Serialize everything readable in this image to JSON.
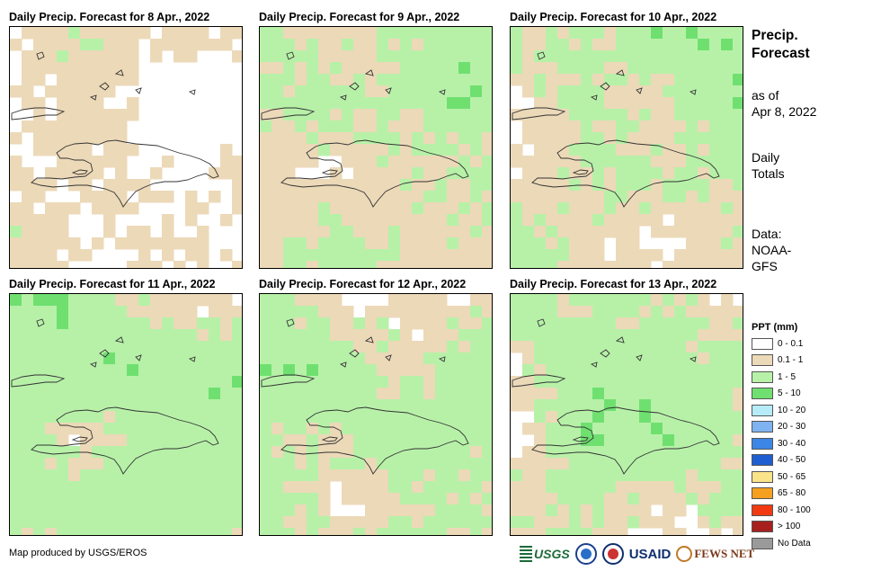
{
  "panels": [
    {
      "title": "Daily Precip. Forecast for 8 Apr., 2022"
    },
    {
      "title": "Daily Precip. Forecast for 9 Apr., 2022"
    },
    {
      "title": "Daily Precip. Forecast for 10 Apr., 2022"
    },
    {
      "title": "Daily Precip. Forecast for 11 Apr., 2022"
    },
    {
      "title": "Daily Precip. Forecast for 12 Apr., 2022"
    },
    {
      "title": "Daily Precip. Forecast for 13 Apr., 2022"
    }
  ],
  "side": {
    "title_line1": "Precip.",
    "title_line2": "Forecast",
    "asof_line1": "as of",
    "asof_line2": "Apr 8, 2022",
    "daily_line1": "Daily",
    "daily_line2": "Totals",
    "data_line1": "Data:",
    "data_line2": "NOAA-",
    "data_line3": "GFS"
  },
  "legend": {
    "title": "PPT (mm)",
    "items": [
      {
        "label": "0 - 0.1",
        "color": "#ffffff"
      },
      {
        "label": "0.1 - 1",
        "color": "#ecd9b8"
      },
      {
        "label": "1 - 5",
        "color": "#b7f1a8"
      },
      {
        "label": "5 - 10",
        "color": "#6fe070"
      },
      {
        "label": "10 - 20",
        "color": "#b6ecf8"
      },
      {
        "label": "20 - 30",
        "color": "#7fb2f0"
      },
      {
        "label": "30 - 40",
        "color": "#3c86e6"
      },
      {
        "label": "40 - 50",
        "color": "#1f5ed0"
      },
      {
        "label": "50 - 65",
        "color": "#fbe38a"
      },
      {
        "label": "65 - 80",
        "color": "#f6a020"
      },
      {
        "label": "80 - 100",
        "color": "#f23a12"
      },
      {
        "label": "> 100",
        "color": "#a8201e"
      },
      {
        "label": "No Data",
        "color": "#9a9a9a"
      }
    ]
  },
  "credit": "Map produced by USGS/EROS",
  "logos": {
    "usgs": "USGS",
    "usaid": "USAID",
    "fews": "FEWS NET"
  }
}
